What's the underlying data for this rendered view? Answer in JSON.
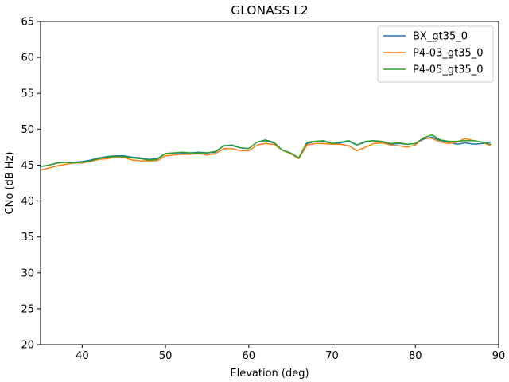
{
  "chart_data": {
    "type": "line",
    "title": "GLONASS L2",
    "xlabel": "Elevation (deg)",
    "ylabel": "CNo (dB Hz)",
    "xlim": [
      35,
      90
    ],
    "ylim": [
      20,
      65
    ],
    "xticks": [
      40,
      50,
      60,
      70,
      80,
      90
    ],
    "yticks": [
      20,
      25,
      30,
      35,
      40,
      45,
      50,
      55,
      60,
      65
    ],
    "grid": false,
    "legend_position": "top-right",
    "x": [
      35,
      36,
      37,
      38,
      39,
      40,
      41,
      42,
      43,
      44,
      45,
      46,
      47,
      48,
      49,
      50,
      51,
      52,
      53,
      54,
      55,
      56,
      57,
      58,
      59,
      60,
      61,
      62,
      63,
      64,
      65,
      66,
      67,
      68,
      69,
      70,
      71,
      72,
      73,
      74,
      75,
      76,
      77,
      78,
      79,
      80,
      81,
      82,
      83,
      84,
      85,
      86,
      87,
      88,
      89
    ],
    "series": [
      {
        "name": "BX_gt35_0",
        "color": "#1f77b4",
        "values": [
          44.8,
          45.0,
          45.3,
          45.4,
          45.4,
          45.5,
          45.7,
          46.0,
          46.2,
          46.3,
          46.3,
          46.1,
          46.0,
          45.8,
          45.9,
          46.6,
          46.7,
          46.7,
          46.7,
          46.8,
          46.7,
          46.8,
          47.7,
          47.7,
          47.4,
          47.3,
          48.2,
          48.4,
          48.1,
          47.1,
          46.7,
          46.0,
          48.0,
          48.3,
          48.3,
          48.0,
          48.1,
          48.3,
          47.8,
          48.2,
          48.4,
          48.2,
          47.9,
          48.0,
          47.9,
          48.0,
          48.6,
          48.9,
          48.4,
          48.2,
          47.9,
          48.1,
          47.9,
          48.0,
          48.2
        ]
      },
      {
        "name": "P4-03_gt35_0",
        "color": "#ff7f0e",
        "values": [
          44.3,
          44.6,
          44.9,
          45.1,
          45.3,
          45.3,
          45.5,
          45.8,
          45.9,
          46.1,
          46.1,
          45.7,
          45.6,
          45.6,
          45.6,
          46.3,
          46.4,
          46.5,
          46.5,
          46.6,
          46.4,
          46.6,
          47.3,
          47.3,
          47.0,
          47.0,
          47.8,
          48.0,
          47.9,
          47.1,
          46.6,
          45.9,
          47.8,
          48.0,
          48.0,
          47.9,
          47.9,
          47.7,
          47.0,
          47.5,
          48.0,
          48.1,
          47.8,
          47.7,
          47.5,
          47.8,
          48.8,
          48.7,
          48.2,
          48.0,
          48.2,
          48.7,
          48.4,
          48.2,
          47.7
        ]
      },
      {
        "name": "P4-05_gt35_0",
        "color": "#2ca02c",
        "values": [
          44.8,
          45.0,
          45.3,
          45.4,
          45.3,
          45.4,
          45.6,
          45.9,
          46.1,
          46.2,
          46.2,
          46.0,
          45.9,
          45.7,
          45.8,
          46.6,
          46.7,
          46.8,
          46.7,
          46.7,
          46.7,
          46.9,
          47.7,
          47.8,
          47.4,
          47.3,
          48.2,
          48.5,
          48.2,
          47.1,
          46.7,
          46.0,
          48.2,
          48.3,
          48.4,
          48.0,
          48.2,
          48.4,
          47.8,
          48.3,
          48.4,
          48.3,
          48.0,
          48.1,
          47.9,
          48.0,
          48.8,
          49.2,
          48.5,
          48.3,
          48.3,
          48.4,
          48.4,
          48.2,
          47.9
        ]
      }
    ]
  }
}
